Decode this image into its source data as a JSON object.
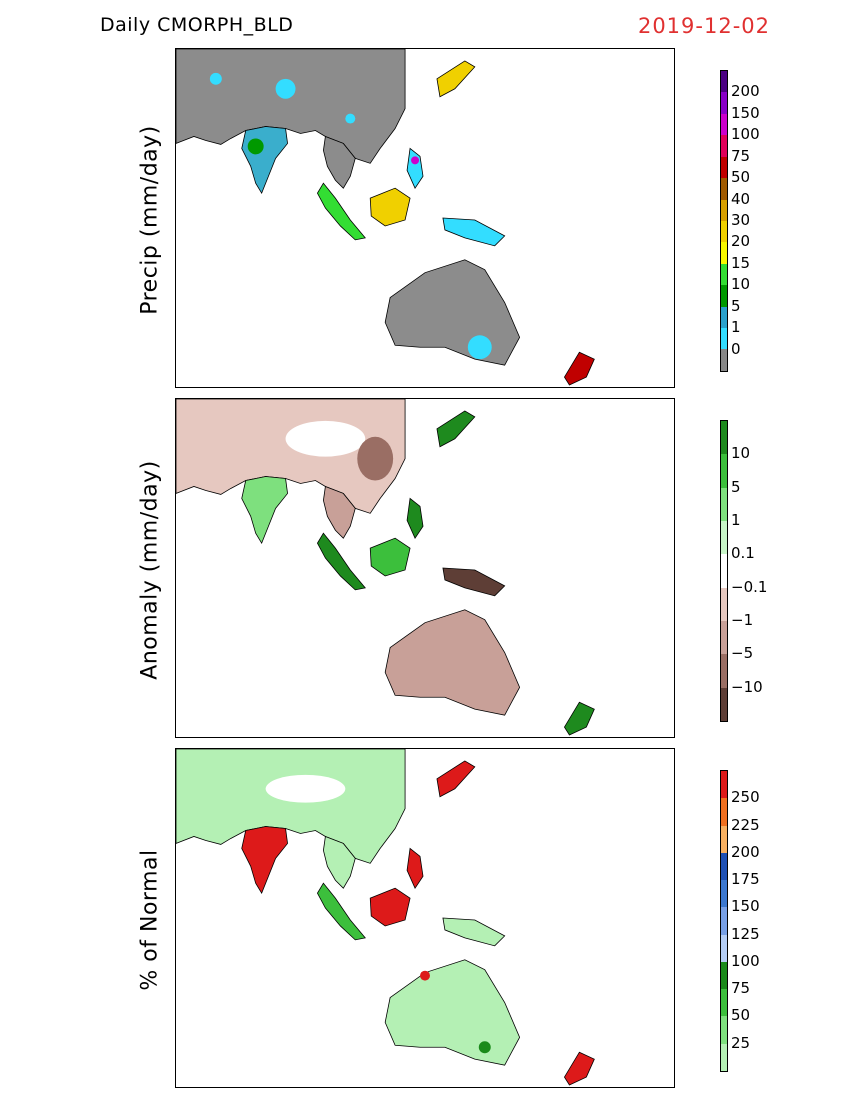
{
  "header": {
    "product": "Daily  CMORPH_BLD",
    "date": "2019-12-02"
  },
  "colors": {
    "date": "#e03030",
    "land_dry": "#8c8c8c",
    "outline": "#000000"
  },
  "panels": [
    {
      "ylabel": "Precip  (mm/day)",
      "colorbar": {
        "labels": [
          "200",
          "150",
          "100",
          "75",
          "50",
          "40",
          "30",
          "20",
          "15",
          "10",
          "5",
          "1",
          "0"
        ],
        "colors": [
          "#4b0082",
          "#8a00c8",
          "#cc00cc",
          "#e0005a",
          "#c00000",
          "#a05a00",
          "#d8a000",
          "#f0d000",
          "#f8f800",
          "#33dd33",
          "#009900",
          "#2aa1cc",
          "#33ddff",
          "#888888"
        ]
      }
    },
    {
      "ylabel": "Anomaly  (mm/day)",
      "colorbar": {
        "labels": [
          "10",
          "5",
          "1",
          "0.1",
          "−0.1",
          "−1",
          "−5",
          "−10"
        ],
        "colors": [
          "#1e8a1e",
          "#3cbf3c",
          "#7ee07e",
          "#c8f5c8",
          "#ffffff",
          "#e6c8c0",
          "#c8a098",
          "#9a6e64",
          "#5e3e36"
        ]
      }
    },
    {
      "ylabel": "% of Normal",
      "colorbar": {
        "labels": [
          "250",
          "225",
          "200",
          "175",
          "150",
          "125",
          "100",
          "75",
          "50",
          "25"
        ],
        "colors": [
          "#dd1a1a",
          "#f07020",
          "#f8b060",
          "#1e50b4",
          "#3c78d0",
          "#78a0e6",
          "#b4cdf5",
          "#1a8a1a",
          "#3cbf3c",
          "#7ee07e",
          "#b4f0b4"
        ]
      }
    }
  ]
}
